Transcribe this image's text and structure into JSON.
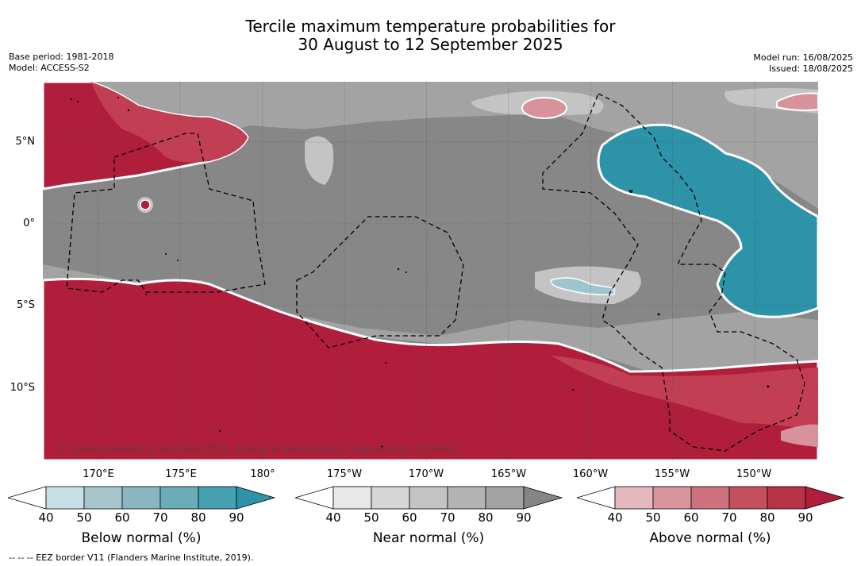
{
  "title_line1": "Tercile maximum temperature probabilities for",
  "title_line2": "30 August to 12 September 2025",
  "meta_left": {
    "base_period": "Base period: 1981-2018",
    "model": "Model: ACCESS-S2"
  },
  "meta_right": {
    "model_run": "Model run: 16/08/2025",
    "issued": "Issued: 18/08/2025"
  },
  "map": {
    "lat_labels": [
      "5°N",
      "0°",
      "5°S",
      "10°S"
    ],
    "lon_labels": [
      "170°E",
      "175°E",
      "180°",
      "175°W",
      "170°W",
      "165°W",
      "160°W",
      "155°W",
      "150°W"
    ],
    "copyright": "© Commonwealth of Australia 2025, Bureau of Meteorology, supported by COSPPac",
    "colors": {
      "above_strong": "#b01e3b",
      "above_mid": "#c23f53",
      "above_light": "#d8929c",
      "near_dark": "#878787",
      "near_mid": "#a3a3a3",
      "near_light": "#c4c4c4",
      "below_strong": "#2c93a8",
      "below_light": "#9cc5cd"
    }
  },
  "colorbars": [
    {
      "title": "Below normal (%)",
      "ticks": [
        "40",
        "50",
        "60",
        "70",
        "80",
        "90"
      ],
      "colors": [
        "#c7e0e5",
        "#a7c7cd",
        "#8bb6c0",
        "#6aacb8",
        "#46a0b1",
        "#2c93a8"
      ]
    },
    {
      "title": "Near normal (%)",
      "ticks": [
        "40",
        "50",
        "60",
        "70",
        "80",
        "90"
      ],
      "colors": [
        "#e8e8e8",
        "#d6d6d6",
        "#c4c4c4",
        "#b3b3b3",
        "#a3a3a3",
        "#858585"
      ]
    },
    {
      "title": "Above normal (%)",
      "ticks": [
        "40",
        "50",
        "60",
        "70",
        "80",
        "90"
      ],
      "colors": [
        "#e3b9bf",
        "#d8959e",
        "#cc717d",
        "#c4505e",
        "#b83248",
        "#b01e3b"
      ]
    }
  ],
  "footnote": "--  --  -- EEZ border V11 (Flanders Marine Institute, 2019)."
}
